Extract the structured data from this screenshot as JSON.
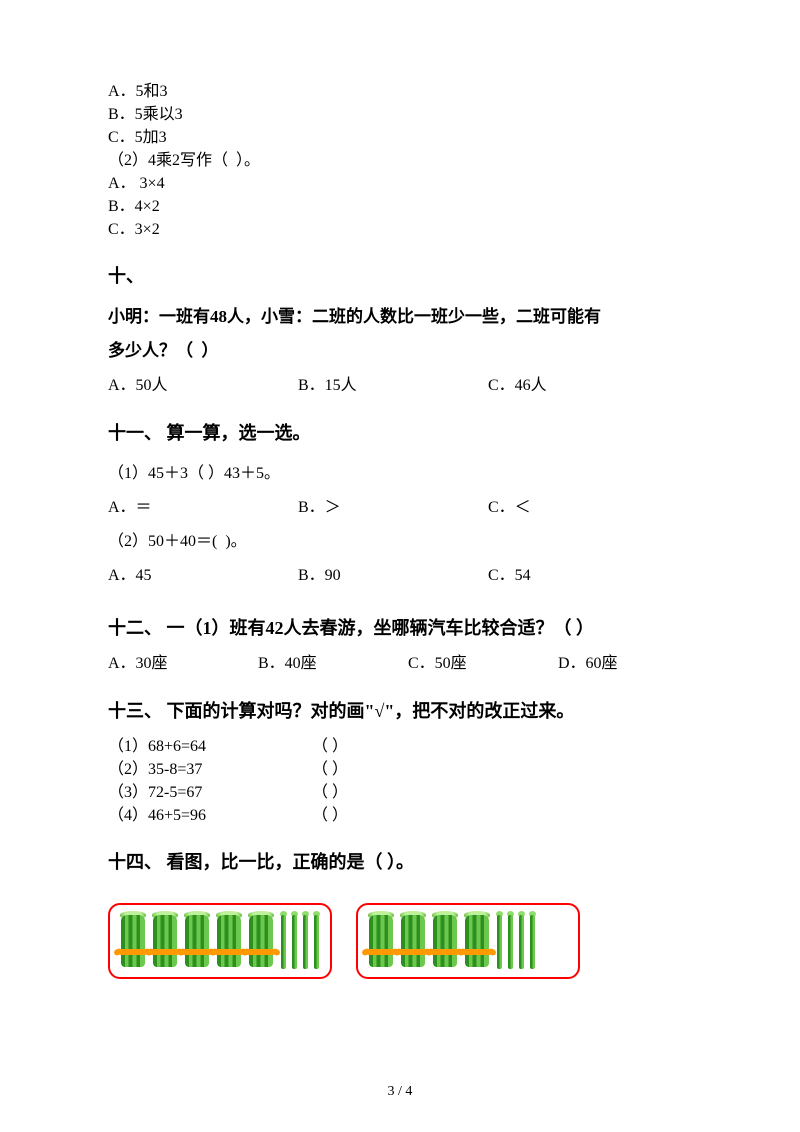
{
  "top_options": {
    "a": "A．5和3",
    "b": "B．5乘以3",
    "c": "C．5加3",
    "sub2": "（2）4乘2写作（  ）。",
    "sub2a": "A． 3×4",
    "sub2b": "B．4×2",
    "sub2c": "C．3×2"
  },
  "q10": {
    "heading": "十、",
    "line1": "小明：一班有48人，小雪：二班的人数比一班少一些，二班可能有",
    "line2": "多少人？（  ）",
    "optA": "A．50人",
    "optB": "B．15人",
    "optC": "C．46人"
  },
  "q11": {
    "heading": "十一、 算一算，选一选。",
    "sub1": "（1）45＋3（ ）43＋5。",
    "sub1a": "A．＝",
    "sub1b": "B．＞",
    "sub1c": "C．＜",
    "sub2": "（2）50＋40＝(  )。",
    "sub2a": "A．45",
    "sub2b": "B．90",
    "sub2c": "C．54"
  },
  "q12": {
    "heading": "十二、 一（1）班有42人去春游，坐哪辆汽车比较合适？（    ）",
    "optA": "A．30座",
    "optB": "B．40座",
    "optC": "C．50座",
    "optD": "D．60座"
  },
  "q13": {
    "heading": "十三、  下面的计算对吗？对的画\"√\"，把不对的改正过来。",
    "r1": "（1）68+6=64",
    "r2": "（2）35-8=37",
    "r3": "（3）72-5=67",
    "r4": "（4）46+5=96",
    "paren": "（  ）"
  },
  "q14": {
    "heading": "十四、 看图，比一比，正确的是（   ）。",
    "card1": {
      "bundles": 5,
      "sticks": 4
    },
    "card2": {
      "bundles": 4,
      "sticks": 4
    }
  },
  "page": "3 / 4",
  "colors": {
    "text": "#000000",
    "bg": "#ffffff",
    "card_border": "#ff0000"
  }
}
